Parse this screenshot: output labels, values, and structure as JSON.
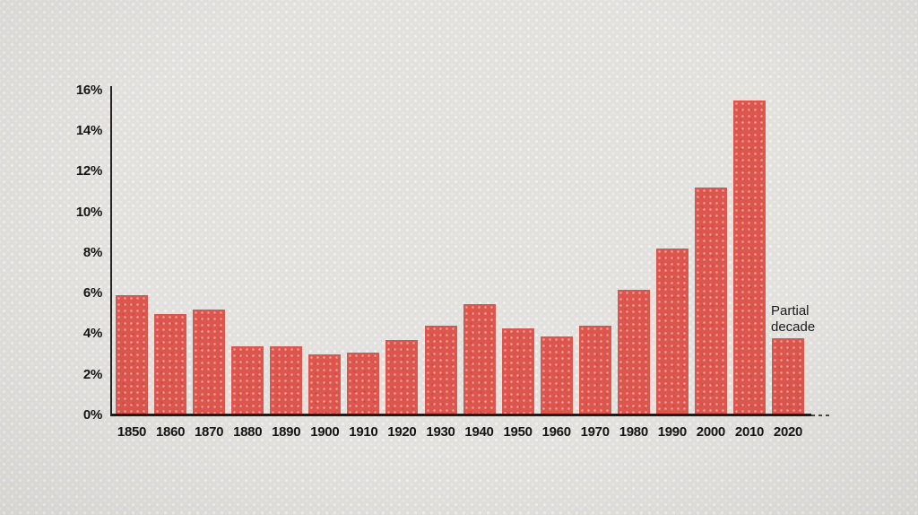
{
  "chart_data": {
    "type": "bar",
    "title": "",
    "categories": [
      "1850",
      "1860",
      "1870",
      "1880",
      "1890",
      "1900",
      "1910",
      "1920",
      "1930",
      "1940",
      "1950",
      "1960",
      "1970",
      "1980",
      "1990",
      "2000",
      "2010",
      "2020"
    ],
    "values": [
      5.9,
      5.0,
      5.2,
      3.4,
      3.4,
      3.0,
      3.1,
      3.7,
      4.4,
      5.5,
      4.3,
      3.9,
      4.4,
      6.2,
      8.2,
      11.2,
      15.5,
      3.8
    ],
    "xlabel": "",
    "ylabel": "",
    "ylim": [
      0,
      16
    ],
    "yticks": [
      0,
      2,
      4,
      6,
      8,
      10,
      12,
      14,
      16
    ],
    "ytick_labels": [
      "0%",
      "2%",
      "4%",
      "6%",
      "8%",
      "10%",
      "12%",
      "14%",
      "16%"
    ],
    "grid": false,
    "legend": "none",
    "annotation": "Partial decade",
    "annotation_target": "2020"
  },
  "colors": {
    "bar": "#dc564d",
    "background": "#e3e1de",
    "axis": "#26231f",
    "text": "#141414"
  }
}
